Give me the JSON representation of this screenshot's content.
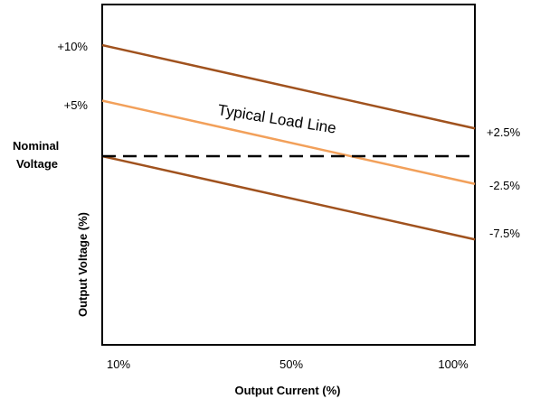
{
  "chart_data": {
    "type": "line",
    "xlabel": "Output Current (%)",
    "ylabel": "Output Voltage (%)",
    "x_ticks": [
      "10%",
      "50%",
      "100%"
    ],
    "x": [
      10,
      100
    ],
    "left_labels": [
      "+10%",
      "+5%"
    ],
    "nominal_label": [
      "Nominal",
      "Voltage"
    ],
    "right_labels": [
      "+2.5%",
      "-2.5%",
      "-7.5%"
    ],
    "series": [
      {
        "values": [
          10,
          2.5
        ],
        "color": "#a0521e"
      },
      {
        "values": [
          5,
          -2.5
        ],
        "color": "#f2a05a"
      },
      {
        "values": [
          0,
          -7.5
        ],
        "color": "#a0521e"
      },
      {
        "values": [
          0,
          0
        ],
        "color": "#000000",
        "dashed": true
      }
    ],
    "annotation": "Typical Load Line"
  }
}
